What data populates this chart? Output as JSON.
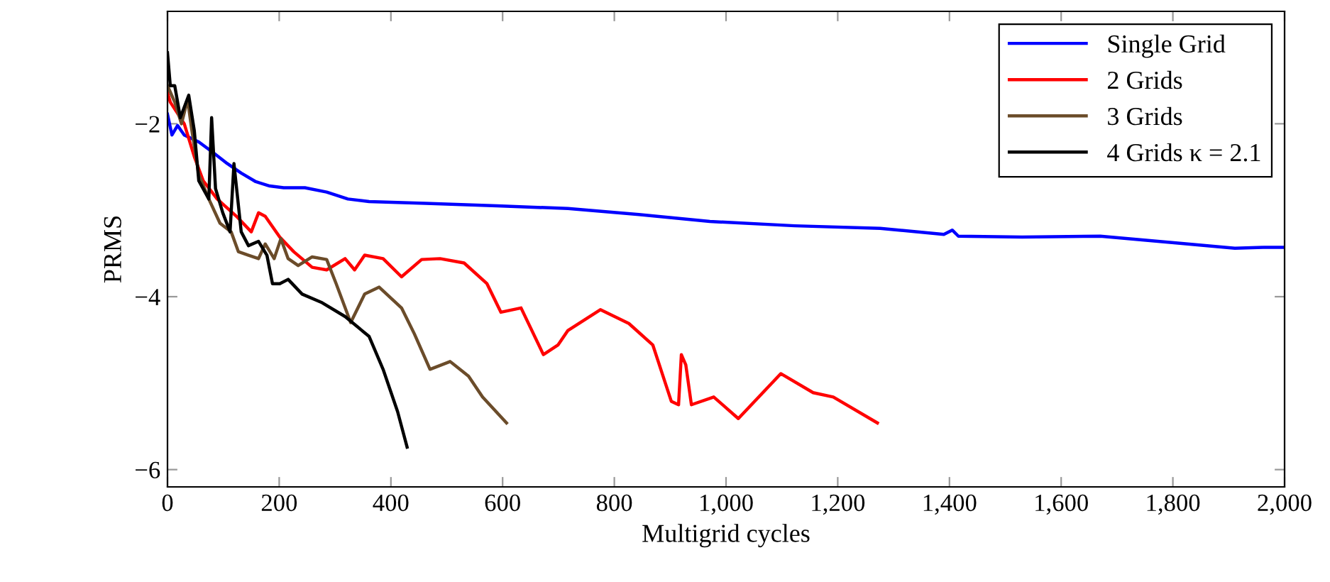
{
  "chart_data": {
    "type": "line",
    "xlabel": "Multigrid cycles",
    "ylabel": "PRMS",
    "xlim": [
      0,
      2000
    ],
    "ylim": [
      -6.2,
      -0.7
    ],
    "xticks": [
      0,
      200,
      400,
      600,
      800,
      {
        "value": 1000,
        "label": "1,000"
      },
      {
        "value": 1200,
        "label": "1,200"
      },
      {
        "value": 1400,
        "label": "1,400"
      },
      {
        "value": 1600,
        "label": "1,600"
      },
      {
        "value": 1800,
        "label": "1,800"
      },
      {
        "value": 2000,
        "label": "2,000"
      }
    ],
    "yticks": [
      {
        "value": -6,
        "label": "−6"
      },
      {
        "value": -4,
        "label": "−4"
      },
      {
        "value": -2,
        "label": "−2"
      }
    ],
    "grid": false,
    "legend": "top right",
    "marker": "none",
    "line_style": "solid",
    "series": [
      {
        "name": "Single Grid",
        "color": "#0000ff",
        "x": [
          0,
          8,
          18,
          30,
          56,
          81,
          107,
          132,
          158,
          183,
          208,
          246,
          285,
          323,
          361,
          462,
          590,
          717,
          844,
          971,
          1123,
          1276,
          1390,
          1405,
          1416,
          1530,
          1670,
          1809,
          1911,
          1962,
          2000
        ],
        "values": [
          -1.89,
          -2.13,
          -2.02,
          -2.13,
          -2.21,
          -2.33,
          -2.46,
          -2.57,
          -2.67,
          -2.72,
          -2.74,
          -2.74,
          -2.79,
          -2.87,
          -2.9,
          -2.92,
          -2.95,
          -2.98,
          -3.05,
          -3.13,
          -3.18,
          -3.21,
          -3.28,
          -3.23,
          -3.3,
          -3.31,
          -3.3,
          -3.38,
          -3.44,
          -3.43,
          -3.43
        ]
      },
      {
        "name": "2 Grids",
        "color": "#ff0000",
        "x": [
          0,
          5,
          30,
          48,
          64,
          89,
          125,
          150,
          163,
          175,
          201,
          226,
          259,
          285,
          318,
          335,
          353,
          386,
          419,
          455,
          488,
          531,
          572,
          597,
          633,
          673,
          699,
          717,
          775,
          826,
          869,
          902,
          915,
          920,
          928,
          938,
          978,
          1022,
          1098,
          1156,
          1192,
          1271
        ],
        "values": [
          -1.64,
          -1.75,
          -2.0,
          -2.38,
          -2.66,
          -2.87,
          -3.08,
          -3.25,
          -3.03,
          -3.07,
          -3.31,
          -3.48,
          -3.66,
          -3.69,
          -3.56,
          -3.69,
          -3.52,
          -3.56,
          -3.77,
          -3.57,
          -3.56,
          -3.61,
          -3.85,
          -4.18,
          -4.13,
          -4.67,
          -4.56,
          -4.39,
          -4.15,
          -4.31,
          -4.56,
          -5.21,
          -5.25,
          -4.67,
          -4.79,
          -5.25,
          -5.16,
          -5.41,
          -4.89,
          -5.11,
          -5.16,
          -5.46
        ]
      },
      {
        "name": "3 Grids",
        "color": "#6b4c2a",
        "x": [
          0,
          13,
          25,
          36,
          43,
          56,
          74,
          94,
          114,
          127,
          145,
          163,
          175,
          191,
          203,
          216,
          234,
          259,
          285,
          302,
          328,
          353,
          379,
          419,
          442,
          470,
          506,
          539,
          564,
          607
        ],
        "values": [
          -1.56,
          -1.75,
          -2.0,
          -1.72,
          -2.05,
          -2.59,
          -2.87,
          -3.15,
          -3.25,
          -3.48,
          -3.52,
          -3.56,
          -3.39,
          -3.56,
          -3.33,
          -3.56,
          -3.64,
          -3.54,
          -3.57,
          -3.85,
          -4.3,
          -3.97,
          -3.89,
          -4.13,
          -4.43,
          -4.84,
          -4.75,
          -4.92,
          -5.16,
          -5.46
        ]
      },
      {
        "name": "4 Grids κ = 2.1",
        "color": "#000000",
        "x": [
          0,
          5,
          13,
          23,
          38,
          48,
          56,
          74,
          79,
          86,
          99,
          112,
          119,
          132,
          145,
          163,
          178,
          188,
          201,
          216,
          241,
          277,
          318,
          361,
          386,
          412,
          429
        ],
        "values": [
          -1.18,
          -1.56,
          -1.56,
          -1.93,
          -1.67,
          -2.08,
          -2.66,
          -2.87,
          -1.93,
          -2.75,
          -3.03,
          -3.25,
          -2.46,
          -3.25,
          -3.41,
          -3.36,
          -3.52,
          -3.85,
          -3.85,
          -3.8,
          -3.97,
          -4.07,
          -4.23,
          -4.46,
          -4.84,
          -5.33,
          -5.74
        ]
      }
    ]
  }
}
